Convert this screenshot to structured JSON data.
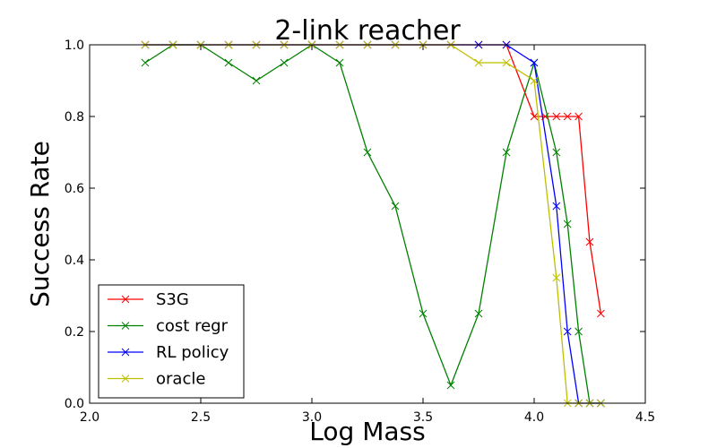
{
  "chart_data": {
    "type": "line",
    "title": "2-link reacher",
    "xlabel": "Log Mass",
    "ylabel": "Success Rate",
    "xlim": [
      2.0,
      4.5
    ],
    "ylim": [
      0.0,
      1.0
    ],
    "x_ticks": [
      "2.0",
      "2.5",
      "3.0",
      "3.5",
      "4.0",
      "4.5"
    ],
    "y_ticks": [
      "0.0",
      "0.2",
      "0.4",
      "0.6",
      "0.8",
      "1.0"
    ],
    "grid": false,
    "legend_position": "bottom-left",
    "marker": "x",
    "series": [
      {
        "name": "S3G",
        "color": "#ff0000",
        "x": [
          2.25,
          2.375,
          2.5,
          2.625,
          2.75,
          2.875,
          3.0,
          3.125,
          3.25,
          3.375,
          3.5,
          3.625,
          3.75,
          3.875,
          4.0,
          4.05,
          4.1,
          4.15,
          4.2,
          4.25,
          4.3
        ],
        "y": [
          1.0,
          1.0,
          1.0,
          1.0,
          1.0,
          1.0,
          1.0,
          1.0,
          1.0,
          1.0,
          1.0,
          1.0,
          1.0,
          1.0,
          0.8,
          0.8,
          0.8,
          0.8,
          0.8,
          0.45,
          0.25
        ]
      },
      {
        "name": "cost regr",
        "color": "#008000",
        "x": [
          2.25,
          2.375,
          2.5,
          2.625,
          2.75,
          2.875,
          3.0,
          3.125,
          3.25,
          3.375,
          3.5,
          3.625,
          3.75,
          3.875,
          4.0,
          4.1,
          4.15,
          4.2,
          4.25,
          4.3
        ],
        "y": [
          0.95,
          1.0,
          1.0,
          0.95,
          0.9,
          0.95,
          1.0,
          0.95,
          0.7,
          0.55,
          0.25,
          0.05,
          0.25,
          0.7,
          0.95,
          0.7,
          0.5,
          0.2,
          0.0,
          0.0
        ]
      },
      {
        "name": "RL policy",
        "color": "#0000ff",
        "x": [
          2.25,
          2.375,
          2.5,
          2.625,
          2.75,
          2.875,
          3.0,
          3.125,
          3.25,
          3.375,
          3.5,
          3.625,
          3.75,
          3.875,
          4.0,
          4.1,
          4.15,
          4.2,
          4.25,
          4.3
        ],
        "y": [
          1.0,
          1.0,
          1.0,
          1.0,
          1.0,
          1.0,
          1.0,
          1.0,
          1.0,
          1.0,
          1.0,
          1.0,
          1.0,
          1.0,
          0.95,
          0.55,
          0.2,
          0.0,
          0.0,
          0.0
        ]
      },
      {
        "name": "oracle",
        "color": "#bfbf00",
        "x": [
          2.25,
          2.375,
          2.5,
          2.625,
          2.75,
          2.875,
          3.0,
          3.125,
          3.25,
          3.375,
          3.5,
          3.625,
          3.75,
          3.875,
          4.0,
          4.1,
          4.15,
          4.2,
          4.25,
          4.3
        ],
        "y": [
          1.0,
          1.0,
          1.0,
          1.0,
          1.0,
          1.0,
          1.0,
          1.0,
          1.0,
          1.0,
          1.0,
          1.0,
          0.95,
          0.95,
          0.9,
          0.35,
          0.0,
          0.0,
          0.0,
          0.0
        ]
      }
    ]
  }
}
